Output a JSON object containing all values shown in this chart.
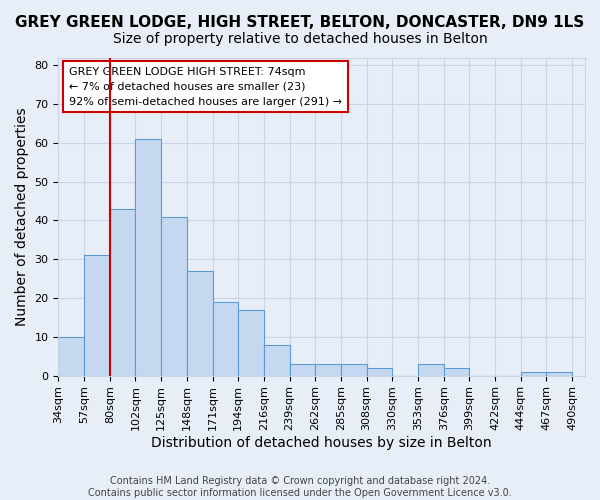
{
  "title": "GREY GREEN LODGE, HIGH STREET, BELTON, DONCASTER, DN9 1LS",
  "subtitle": "Size of property relative to detached houses in Belton",
  "xlabel": "Distribution of detached houses by size in Belton",
  "ylabel": "Number of detached properties",
  "bins": [
    "34sqm",
    "57sqm",
    "80sqm",
    "102sqm",
    "125sqm",
    "148sqm",
    "171sqm",
    "194sqm",
    "216sqm",
    "239sqm",
    "262sqm",
    "285sqm",
    "308sqm",
    "330sqm",
    "353sqm",
    "376sqm",
    "399sqm",
    "422sqm",
    "444sqm",
    "467sqm",
    "490sqm"
  ],
  "values": [
    10,
    31,
    43,
    61,
    41,
    27,
    19,
    17,
    8,
    3,
    3,
    3,
    2,
    0,
    3,
    2,
    0,
    0,
    1,
    1
  ],
  "bar_color": "#c5d8f0",
  "bar_edge_color": "#5b9bd5",
  "red_line_index": 2,
  "annotation_line1": "GREY GREEN LODGE HIGH STREET: 74sqm",
  "annotation_line2": "← 7% of detached houses are smaller (23)",
  "annotation_line3": "92% of semi-detached houses are larger (291) →",
  "annotation_box_color": "#ffffff",
  "annotation_box_edge": "#cc0000",
  "footer_line1": "Contains HM Land Registry data © Crown copyright and database right 2024.",
  "footer_line2": "Contains public sector information licensed under the Open Government Licence v3.0.",
  "ylim": [
    0,
    82
  ],
  "yticks": [
    0,
    10,
    20,
    30,
    40,
    50,
    60,
    70,
    80
  ],
  "grid_color": "#c8d4e8",
  "bg_color": "#e8eef7",
  "red_line_color": "#cc0000",
  "title_fontsize": 11,
  "subtitle_fontsize": 10,
  "tick_fontsize": 8,
  "label_fontsize": 10,
  "footer_fontsize": 7,
  "annotation_fontsize": 8
}
